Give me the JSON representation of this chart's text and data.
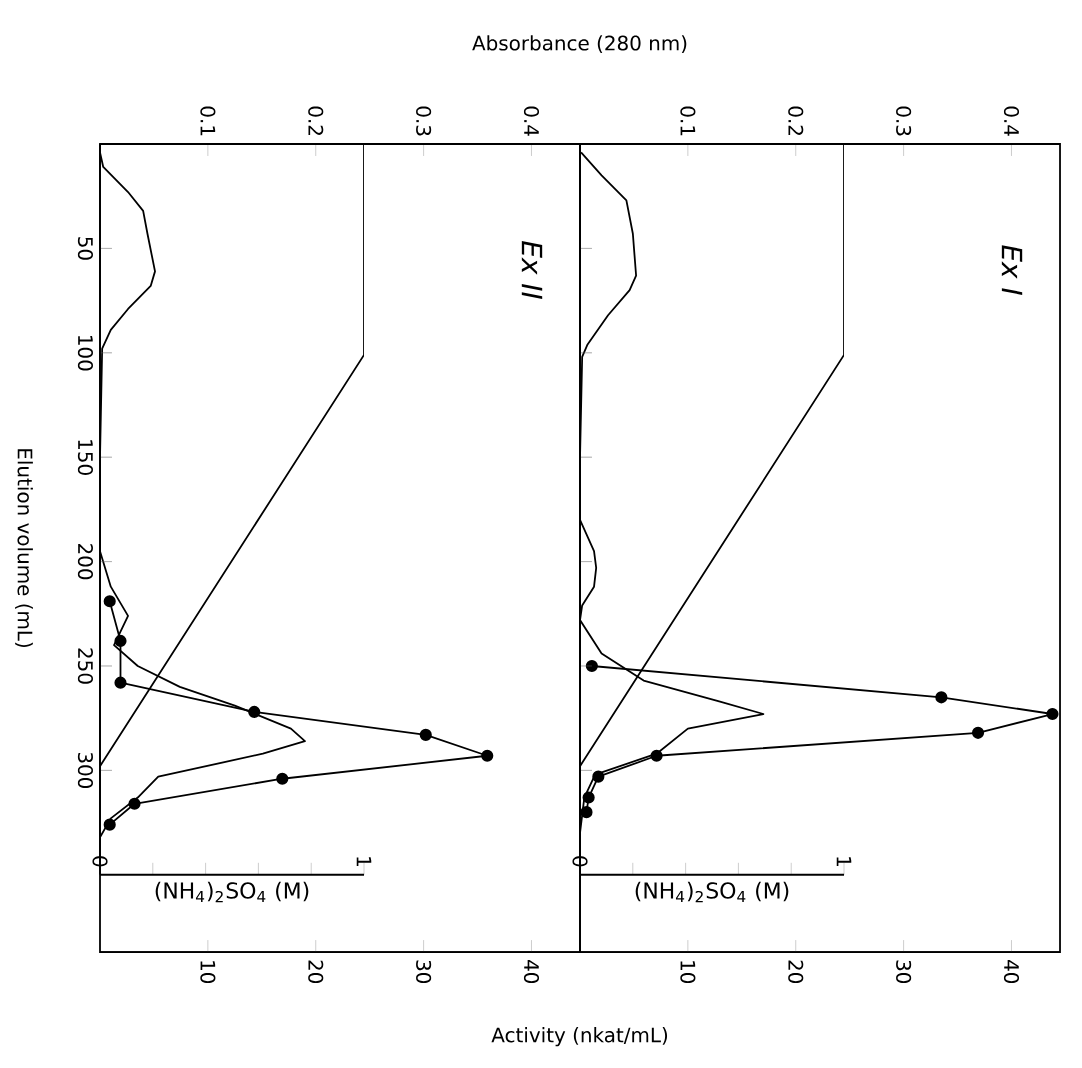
{
  "chart_data": [
    {
      "type": "line",
      "title": "Ex II",
      "ylabel": "Elution volume (mL)",
      "x2label": "Absorbance (280 nm)",
      "xlabel": "Activity (nkat/mL)",
      "ylim": [
        387,
        0
      ],
      "yticks": [
        50,
        100,
        150,
        200,
        250,
        300
      ],
      "x2lim": [
        0,
        0.445
      ],
      "x2ticks": [
        0.1,
        0.2,
        0.3,
        0.4
      ],
      "xlim": [
        0,
        44.5
      ],
      "xticks": [
        10,
        20,
        30,
        40
      ],
      "series": [
        {
          "color": "#000000",
          "marker": "none",
          "axis": "x2",
          "values": [
            4,
            11,
            23,
            32,
            43,
            61,
            68,
            79,
            89,
            98,
            150,
            195,
            212,
            226,
            240,
            250,
            260,
            269,
            280,
            286,
            292,
            303,
            313,
            323,
            332
          ],
          "x": [
            0,
            0.003,
            0.026,
            0.04,
            0.044,
            0.051,
            0.047,
            0.026,
            0.01,
            0.002,
            0,
            0,
            0.01,
            0.026,
            0.013,
            0.035,
            0.074,
            0.125,
            0.177,
            0.19,
            0.151,
            0.054,
            0.035,
            0.01,
            0
          ]
        },
        {
          "color": "#000000",
          "marker": "circle",
          "values": [
            219,
            238,
            258,
            272,
            283,
            293,
            304,
            316,
            326
          ],
          "x": [
            0.9,
            1.9,
            1.9,
            14.3,
            30.2,
            35.9,
            16.9,
            3.2,
            0.9
          ]
        }
      ]
    },
    {
      "type": "line",
      "xlabel": "(NH$_{4}$)$_{2}$SO$_{4}$ (M)",
      "tick_labels": "x",
      "xlim": [
        0,
        1
      ],
      "ylim": [
        350,
        0
      ],
      "yticks": [
        50,
        100,
        150,
        200,
        250,
        300
      ],
      "xticks": [
        0,
        {
          "value": 0.2,
          "label": null
        },
        {
          "value": 0.4,
          "label": null
        },
        {
          "value": 0.6,
          "label": null
        },
        {
          "value": 0.8,
          "label": null
        },
        1
      ],
      "series": [
        {
          "color": "#000000",
          "marker": "none",
          "values": [
            0,
            101,
            298
          ],
          "x": [
            1,
            1,
            0
          ]
        }
      ]
    },
    {
      "type": "line",
      "title": "Ex I",
      "tick_labels": "x",
      "ylim": [
        387,
        0
      ],
      "yticks": [
        50,
        100,
        150,
        200,
        250,
        300
      ],
      "x2lim": [
        0,
        0.445
      ],
      "x2ticks": [
        0.1,
        0.2,
        0.3,
        0.4
      ],
      "xlim": [
        0,
        44.5
      ],
      "xticks": [
        10,
        20,
        30,
        40
      ],
      "series": [
        {
          "color": "#000000",
          "marker": "none",
          "axis": "x2",
          "values": [
            4,
            15,
            27,
            43,
            63,
            70,
            82,
            96,
            102,
            150,
            180,
            195,
            203,
            212,
            221,
            228,
            244,
            257,
            267,
            273,
            280,
            292,
            302,
            313,
            330
          ],
          "x": [
            0.001,
            0.02,
            0.043,
            0.049,
            0.052,
            0.046,
            0.026,
            0.007,
            0.002,
            0,
            0,
            0.013,
            0.015,
            0.013,
            0.002,
            0,
            0.02,
            0.059,
            0.129,
            0.17,
            0.1,
            0.071,
            0.014,
            0.004,
            0
          ]
        },
        {
          "color": "#000000",
          "marker": "circle",
          "values": [
            250,
            265,
            273,
            282,
            293,
            303,
            313,
            320
          ],
          "x": [
            1.1,
            33.5,
            43.8,
            36.9,
            7.1,
            1.7,
            0.8,
            0.6
          ]
        }
      ]
    },
    {
      "type": "line",
      "xlabel": "(NH$_{4}$)$_{2}$SO$_{4}$ (M)",
      "tick_labels": "x",
      "xlim": [
        0,
        1
      ],
      "ylim": [
        350,
        0
      ],
      "yticks": [
        50,
        100,
        150,
        200,
        250,
        300
      ],
      "xticks": [
        0,
        {
          "value": 0.2,
          "label": null
        },
        {
          "value": 0.4,
          "label": null
        },
        {
          "value": 0.6,
          "label": null
        },
        {
          "value": 0.8,
          "label": null
        },
        1
      ],
      "series": [
        {
          "color": "#000000",
          "marker": "none",
          "values": [
            0,
            101,
            298
          ],
          "x": [
            1,
            1,
            0
          ]
        }
      ]
    }
  ]
}
